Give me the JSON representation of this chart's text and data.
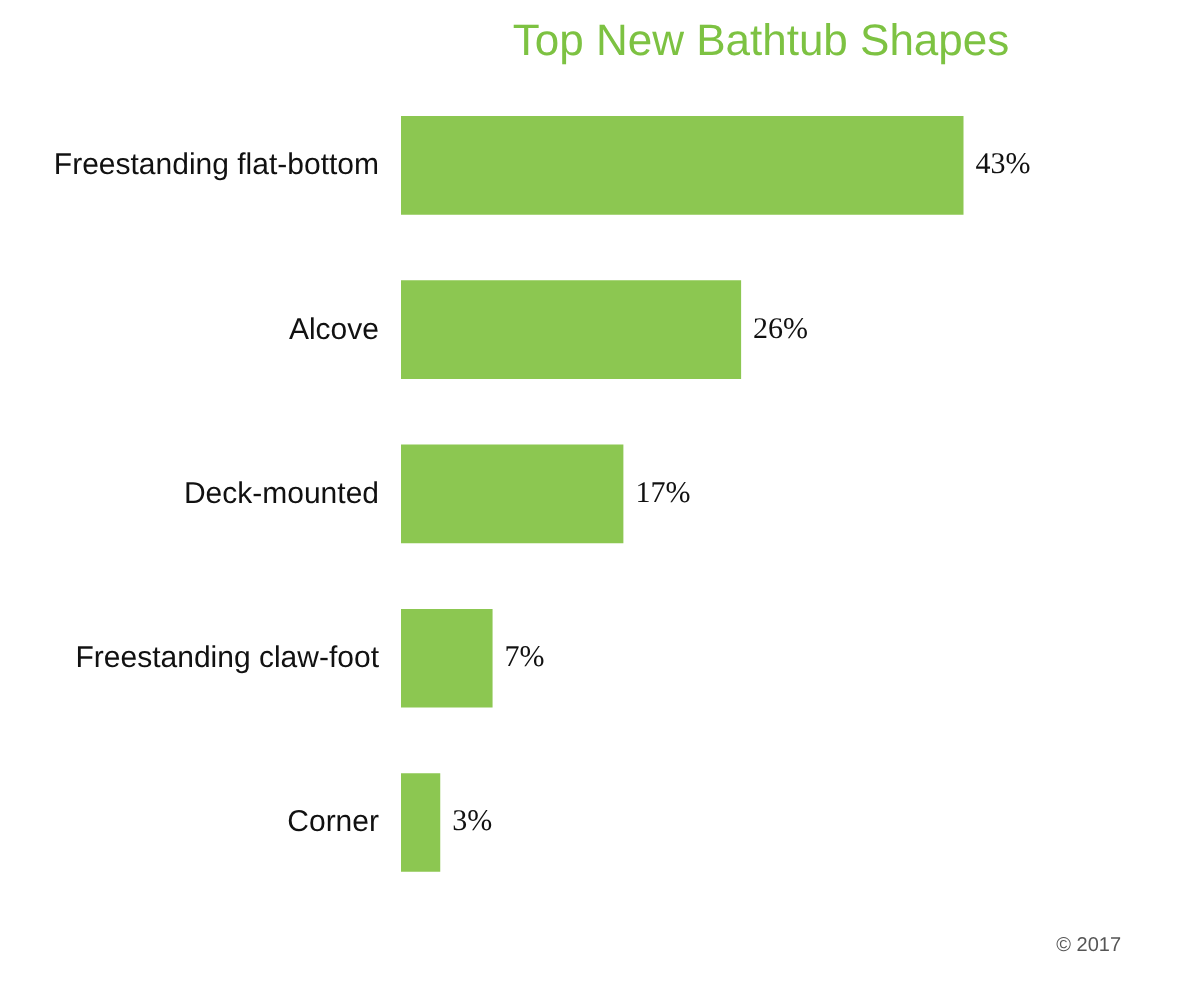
{
  "chart_data": {
    "type": "bar",
    "orientation": "horizontal",
    "title": "Top New Bathtub Shapes",
    "categories": [
      "Freestanding flat-bottom",
      "Alcove",
      "Deck-mounted",
      "Freestanding claw-foot",
      "Corner"
    ],
    "values": [
      43,
      26,
      17,
      7,
      3
    ],
    "value_labels": [
      "43%",
      "26%",
      "17%",
      "7%",
      "3%"
    ],
    "color": "#8cc751",
    "annotations": [
      "© 2017"
    ]
  }
}
